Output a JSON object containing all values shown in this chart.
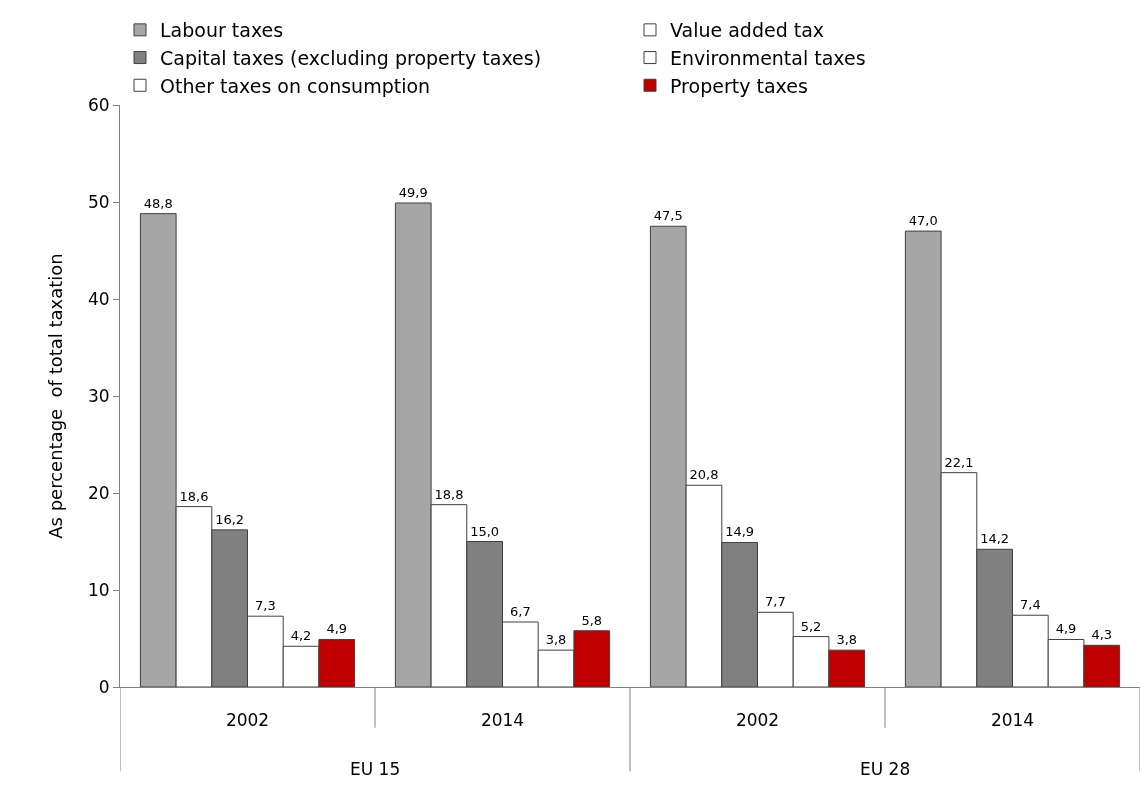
{
  "chart_data": {
    "type": "bar",
    "ylabel": "As percentage  of total taxation",
    "categories": [
      "2002",
      "2014",
      "2002",
      "2014"
    ],
    "annotations": [
      "EU 15",
      "EU 28"
    ],
    "series": [
      {
        "name": "Labour taxes",
        "color": "#a6a6a6",
        "values": [
          48.8,
          49.9,
          47.5,
          47.0
        ],
        "value_labels": [
          "48,8",
          "49,9",
          "47,5",
          "47,0"
        ]
      },
      {
        "name": "Value added tax",
        "color": "#ffffff",
        "values": [
          18.6,
          18.8,
          20.8,
          22.1
        ],
        "value_labels": [
          "18,6",
          "18,8",
          "20,8",
          "22,1"
        ]
      },
      {
        "name": "Capital taxes (excluding property taxes)",
        "color": "#808080",
        "values": [
          16.2,
          15.0,
          14.9,
          14.2
        ],
        "value_labels": [
          "16,2",
          "15,0",
          "14,9",
          "14,2"
        ]
      },
      {
        "name": "Environmental taxes",
        "color": "#ffffff",
        "values": [
          7.3,
          6.7,
          7.7,
          7.4
        ],
        "value_labels": [
          "7,3",
          "6,7",
          "7,7",
          "7,4"
        ]
      },
      {
        "name": "Other taxes on consumption",
        "color": "#ffffff",
        "values": [
          4.2,
          3.8,
          5.2,
          4.9
        ],
        "value_labels": [
          "4,2",
          "3,8",
          "5,2",
          "4,9"
        ]
      },
      {
        "name": "Property taxes",
        "color": "#c00000",
        "values": [
          4.9,
          5.8,
          3.8,
          4.3
        ],
        "value_labels": [
          "4,9",
          "5,8",
          "3,8",
          "4,3"
        ]
      }
    ],
    "ylim": [
      0,
      60
    ],
    "yticks": [
      0,
      10,
      20,
      30,
      40,
      50,
      60
    ],
    "legend": "top"
  }
}
